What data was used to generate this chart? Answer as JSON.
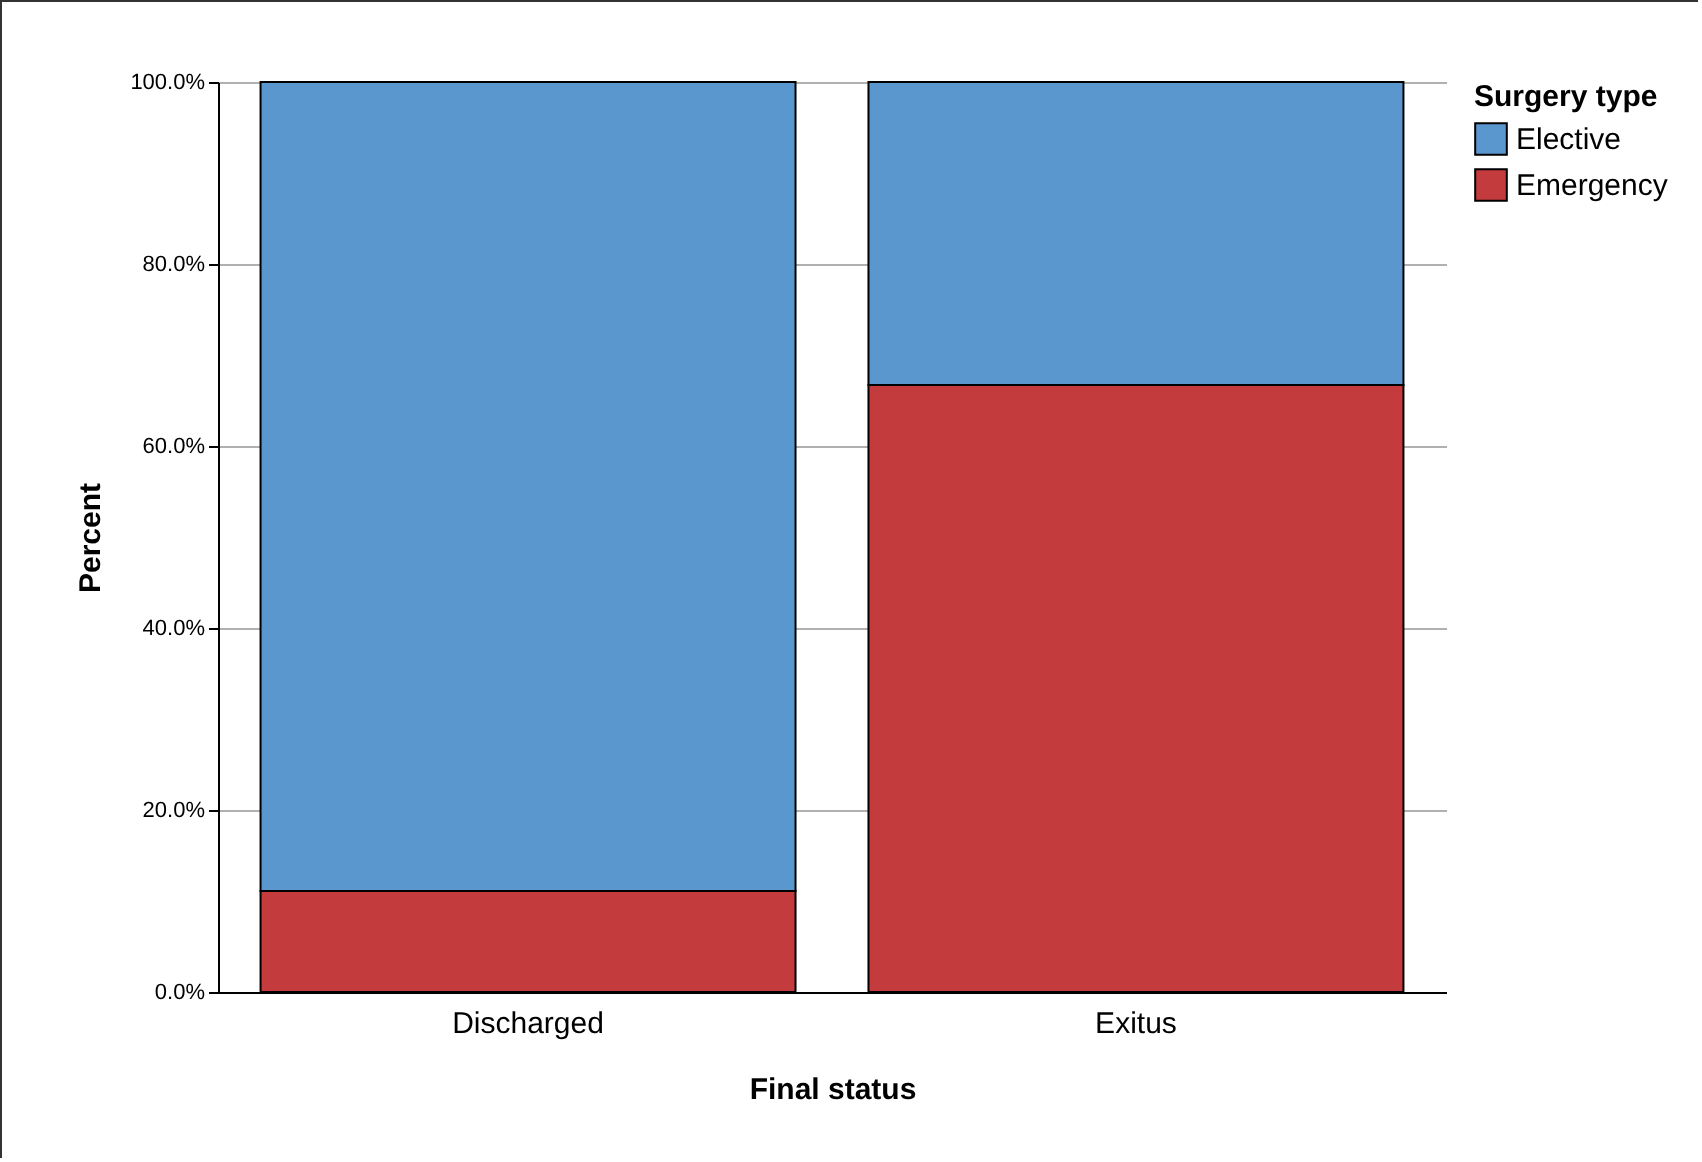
{
  "chart_data": {
    "type": "bar",
    "xlabel": "Final status",
    "ylabel": "Percent",
    "legend_title": "Surgery type",
    "stacked": true,
    "categories": [
      "Discharged",
      "Exitus"
    ],
    "series": [
      {
        "name": "Emergency",
        "color": "#c33b3d",
        "values": [
          11.1,
          66.7
        ]
      },
      {
        "name": "Elective",
        "color": "#5b97cf",
        "values": [
          88.9,
          33.3
        ]
      }
    ],
    "ylim": [
      0,
      100
    ],
    "yticks": [
      {
        "value": 0,
        "label": "0.0%"
      },
      {
        "value": 20,
        "label": "20.0%"
      },
      {
        "value": 40,
        "label": "40.0%"
      },
      {
        "value": 60,
        "label": "60.0%"
      },
      {
        "value": 80,
        "label": "80.0%"
      },
      {
        "value": 100,
        "label": "100.0%"
      }
    ],
    "grid": "y",
    "legend": "top right"
  }
}
